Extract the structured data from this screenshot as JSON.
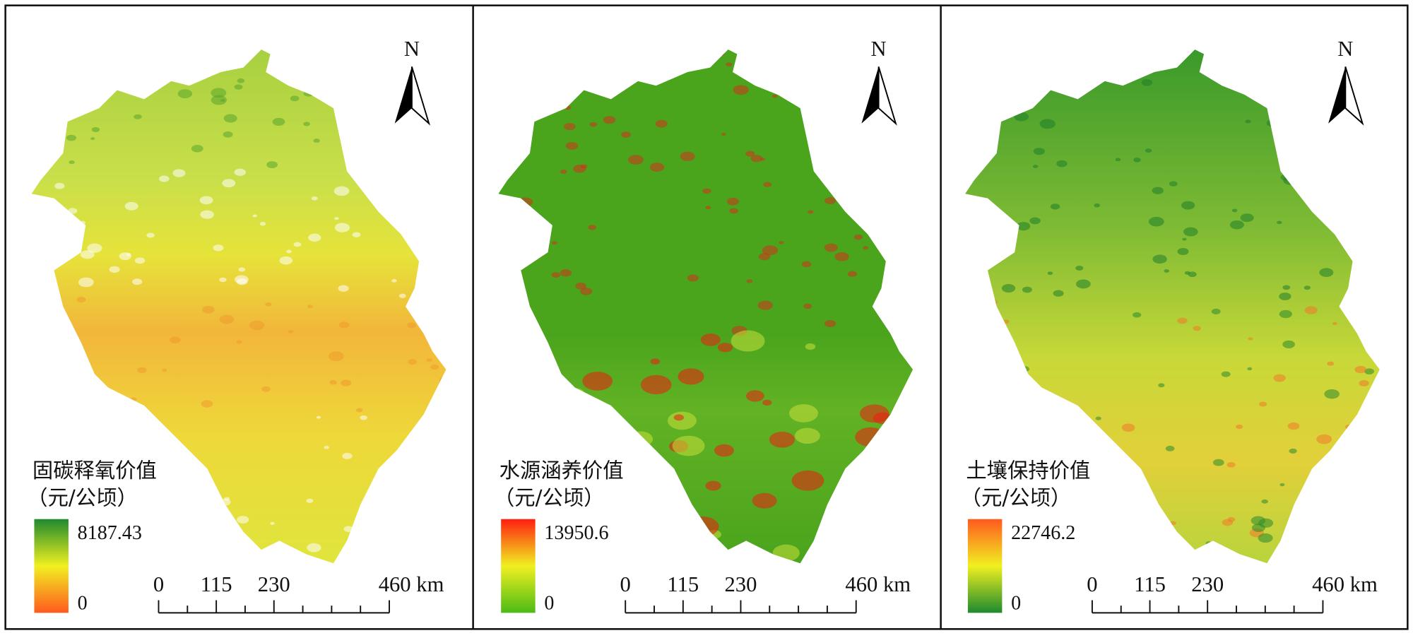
{
  "north_label": "N",
  "panels": [
    {
      "legend_title": "固碳释氧价值",
      "legend_unit": "（元/公顷）",
      "legend_max": "8187.43",
      "legend_min": "0",
      "scale_labels": [
        "0",
        "115",
        "230",
        "460 km"
      ]
    },
    {
      "legend_title": "水源涵养价值",
      "legend_unit": "（元/公顷）",
      "legend_max": "13950.6",
      "legend_min": "0",
      "scale_labels": [
        "0",
        "115",
        "230",
        "460 km"
      ]
    },
    {
      "legend_title": "土壤保持价值",
      "legend_unit": "（元/公顷）",
      "legend_max": "22746.2",
      "legend_min": "0",
      "scale_labels": [
        "0",
        "115",
        "230",
        "460 km"
      ]
    }
  ]
}
